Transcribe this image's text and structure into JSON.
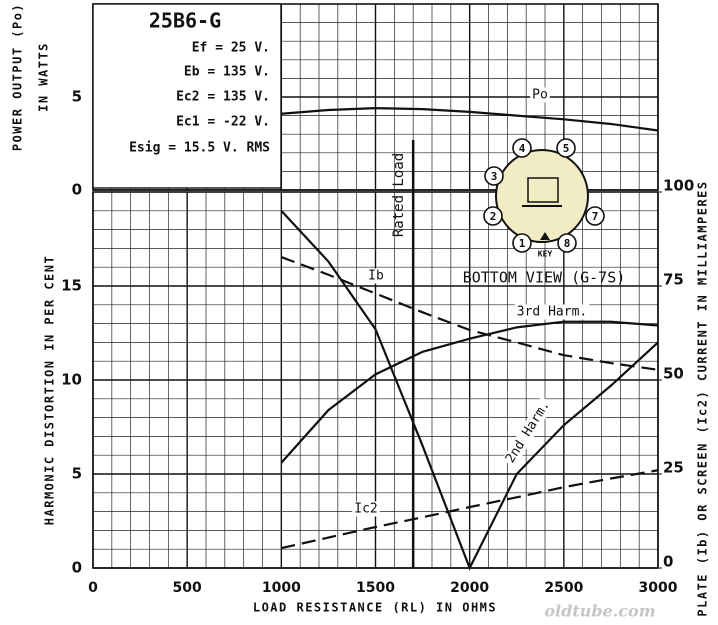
{
  "chart_data": [
    {
      "type": "line",
      "ylabel": [
        "POWER OUTPUT (Po)",
        "IN WATTS"
      ],
      "xlim": [
        0,
        3000
      ],
      "ylim": [
        0,
        10
      ],
      "yticks": [
        0,
        5
      ],
      "grid": true,
      "x": [
        1000,
        1250,
        1500,
        1750,
        2000,
        2250,
        2500,
        2750,
        3000
      ],
      "series": [
        {
          "name": "Po",
          "color": "#111111",
          "style": "solid",
          "values": [
            4.1,
            4.3,
            4.4,
            4.35,
            4.2,
            4.0,
            3.8,
            3.55,
            3.2
          ]
        }
      ]
    },
    {
      "type": "line",
      "xlabel": "LOAD RESISTANCE (RL) IN OHMS",
      "ylabel": "HARMONIC DISTORTION IN PER CENT",
      "y2label": "PLATE (Ib) OR SCREEN (Ic2) CURRENT IN MILLIAMPERES",
      "xlim": [
        0,
        3000
      ],
      "xticks": [
        0,
        500,
        1000,
        1500,
        2000,
        2500,
        3000
      ],
      "ylim": [
        0,
        20
      ],
      "yticks": [
        0,
        5,
        10,
        15
      ],
      "y2lim": [
        0,
        100
      ],
      "y2ticks": [
        0,
        25,
        50,
        75,
        100
      ],
      "grid": true,
      "x": [
        1000,
        1250,
        1500,
        1750,
        2000,
        2250,
        2500,
        2750,
        3000
      ],
      "series": [
        {
          "name": "2nd Harm.",
          "color": "#111111",
          "style": "solid",
          "values": [
            19.0,
            16.3,
            12.7,
            6.5,
            0,
            5.0,
            7.6,
            9.7,
            12.0
          ]
        },
        {
          "name": "3rd Harm.",
          "color": "#111111",
          "style": "solid",
          "values": [
            5.6,
            8.4,
            10.3,
            11.5,
            12.2,
            12.8,
            13.1,
            13.1,
            12.9
          ]
        },
        {
          "name": "Ib",
          "color": "#111111",
          "style": "dashed",
          "axis": "y2",
          "values": [
            82.7,
            78,
            73,
            68,
            63.3,
            60,
            56.6,
            54.5,
            52.7
          ]
        },
        {
          "name": "Ic2",
          "color": "#111111",
          "style": "dashed",
          "axis": "y2",
          "values": [
            5.3,
            8.1,
            10.9,
            13.5,
            16.2,
            18.8,
            21.5,
            23.8,
            26
          ]
        }
      ],
      "annotations": [
        {
          "x": 1700,
          "label": "Rated Load"
        }
      ]
    }
  ],
  "info": {
    "title": "25B6-G",
    "lines": [
      "Ef = 25 V.",
      "Eb = 135 V.",
      "Ec2 = 135 V.",
      "Ec1 = -22 V.",
      "Esig = 15.5 V. RMS"
    ]
  },
  "base": {
    "pins": [
      "1",
      "2",
      "3",
      "4",
      "5",
      "7",
      "8"
    ],
    "key": "KEY",
    "label": "BOTTOM VIEW (G-7S)"
  },
  "watermark": "oldtube.com"
}
